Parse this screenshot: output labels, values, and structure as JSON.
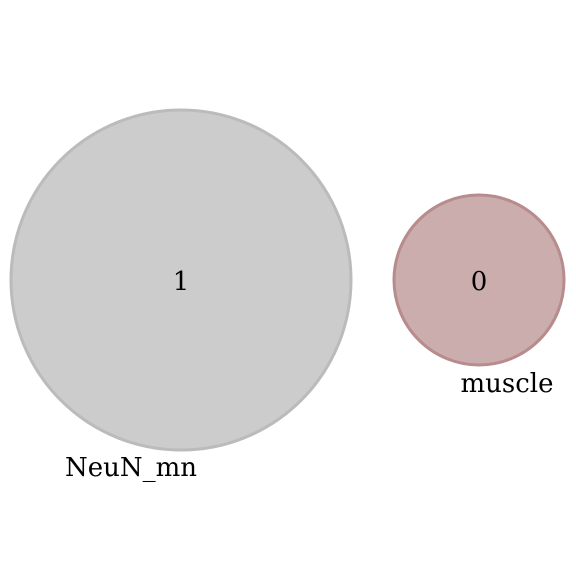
{
  "diagram": {
    "type": "venn",
    "sets": [
      {
        "name": "NeuN_mn",
        "count": "1",
        "fill": "#cccccc",
        "stroke": "#bbbbbb"
      },
      {
        "name": "muscle",
        "count": "0",
        "fill": "#cbadad",
        "stroke": "#b88c8c"
      }
    ]
  }
}
